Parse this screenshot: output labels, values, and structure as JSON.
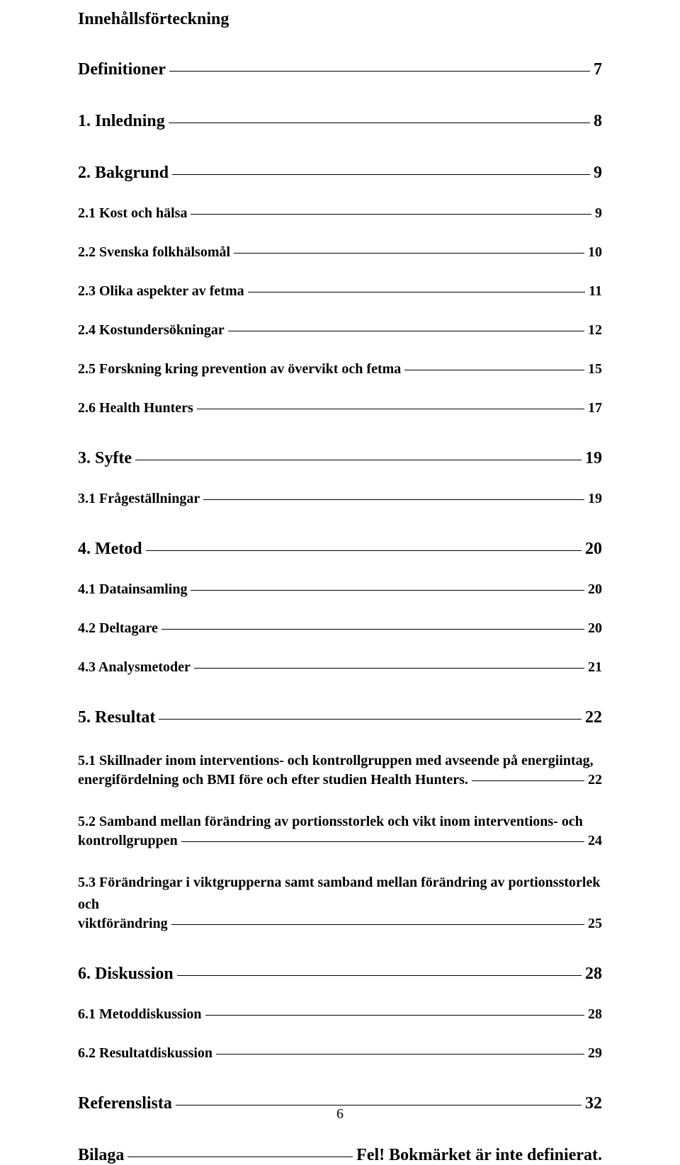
{
  "title": "Innehållsförteckning",
  "footer_page": "6",
  "entries": [
    {
      "type": "row",
      "level": 0,
      "first": true,
      "label": "Definitioner",
      "page": "7"
    },
    {
      "type": "row",
      "level": 0,
      "label": "1. Inledning",
      "page": "8"
    },
    {
      "type": "row",
      "level": 0,
      "label": "2. Bakgrund",
      "page": "9"
    },
    {
      "type": "row",
      "level": 1,
      "label": "2.1 Kost och hälsa",
      "page": "9"
    },
    {
      "type": "row",
      "level": 1,
      "label": "2.2 Svenska folkhälsomål",
      "page": "10"
    },
    {
      "type": "row",
      "level": 1,
      "label": "2.3 Olika aspekter av fetma",
      "page": "11"
    },
    {
      "type": "row",
      "level": 1,
      "label": "2.4 Kostundersökningar",
      "page": "12"
    },
    {
      "type": "row",
      "level": 1,
      "label": "2.5 Forskning kring prevention av övervikt och fetma",
      "page": "15"
    },
    {
      "type": "row",
      "level": 1,
      "label": "2.6 Health Hunters",
      "page": "17"
    },
    {
      "type": "row",
      "level": 0,
      "label": "3. Syfte",
      "page": "19"
    },
    {
      "type": "row",
      "level": 1,
      "label": "3.1 Frågeställningar",
      "page": "19"
    },
    {
      "type": "row",
      "level": 0,
      "label": "4. Metod",
      "page": "20"
    },
    {
      "type": "row",
      "level": 1,
      "label": "4.1 Datainsamling",
      "page": "20"
    },
    {
      "type": "row",
      "level": 1,
      "label": "4.2 Deltagare",
      "page": "20"
    },
    {
      "type": "row",
      "level": 1,
      "label": "4.3 Analysmetoder",
      "page": "21"
    },
    {
      "type": "row",
      "level": 0,
      "label": "5. Resultat",
      "page": "22"
    },
    {
      "type": "multiline",
      "level": 1,
      "top": "5.1 Skillnader inom interventions- och kontrollgruppen med avseende på energiintag,",
      "label": "energifördelning och BMI före och efter studien Health Hunters.",
      "page": "22"
    },
    {
      "type": "multiline",
      "level": 1,
      "top": "5.2 Samband mellan förändring av portionsstorlek och vikt inom interventions- och",
      "label": "kontrollgruppen",
      "page": "24"
    },
    {
      "type": "multiline",
      "level": 1,
      "top": "5.3 Förändringar i viktgrupperna samt samband mellan förändring av portionsstorlek och",
      "label": "viktförändring",
      "page": "25"
    },
    {
      "type": "row",
      "level": 0,
      "label": "6. Diskussion",
      "page": "28"
    },
    {
      "type": "row",
      "level": 1,
      "label": "6.1 Metoddiskussion",
      "page": "28"
    },
    {
      "type": "row",
      "level": 1,
      "label": "6.2 Resultatdiskussion",
      "page": "29"
    },
    {
      "type": "row",
      "level": 0,
      "label": "Referenslista",
      "page": "32"
    },
    {
      "type": "row",
      "level": 0,
      "label": "Bilaga",
      "page": "Fel! Bokmärket är inte definierat."
    }
  ]
}
